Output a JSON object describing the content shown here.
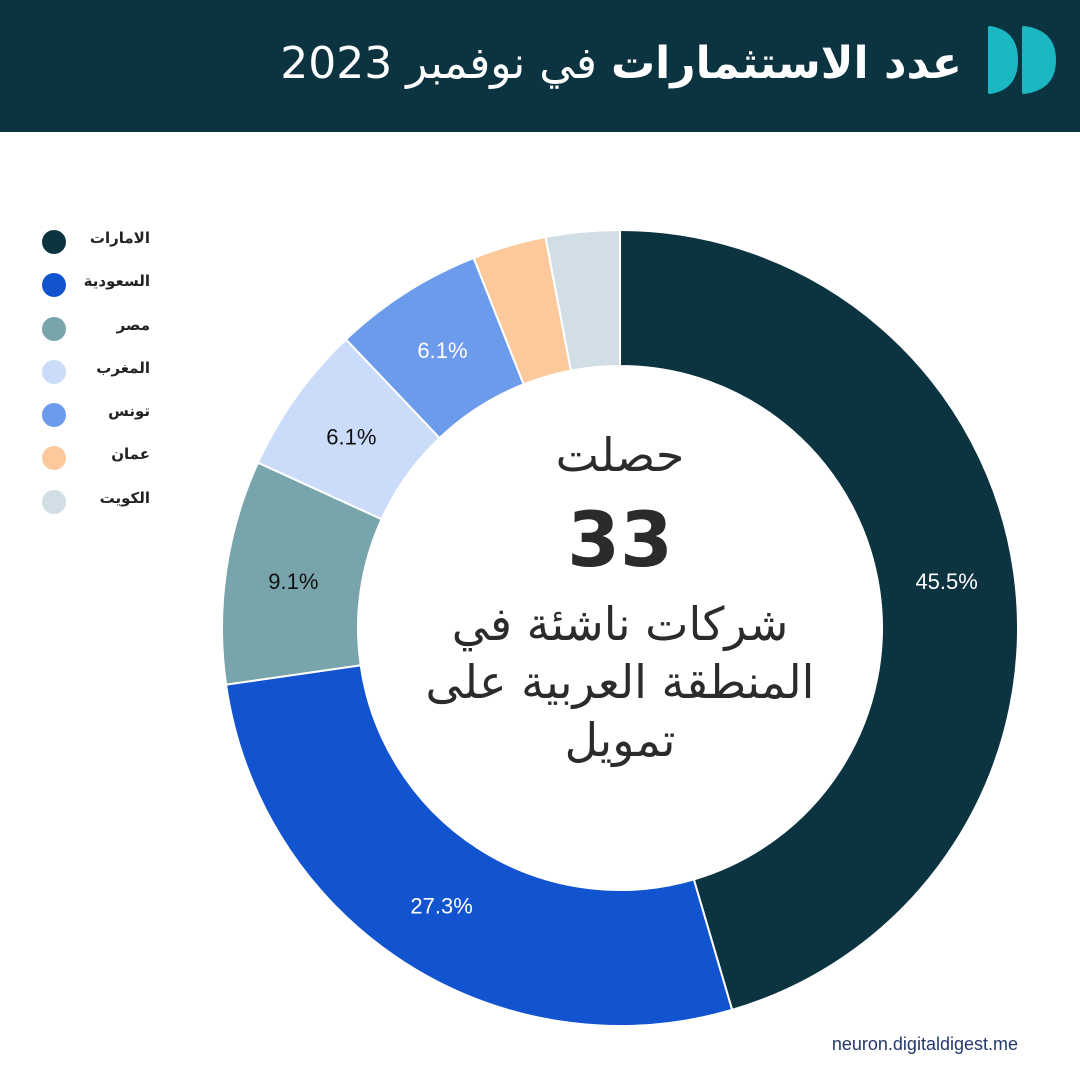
{
  "header": {
    "title_bold": "عدد الاستثمارات",
    "title_regular": "في نوفمبر 2023",
    "logo": "brand-logo-icon"
  },
  "colors": {
    "header_bg": "#0b3340",
    "logo": "#1bb8c4"
  },
  "center": {
    "top": "حصلت",
    "number": "33",
    "bottom": "شركات ناشئة في المنطقة العربية على تمويل"
  },
  "footer": {
    "source": "neuron.digitaldigest.me"
  },
  "chart_data": {
    "type": "donut",
    "categories": [
      "الامارات",
      "السعودية",
      "مصر",
      "المغرب",
      "تونس",
      "عمان",
      "الكويت"
    ],
    "values": [
      45.5,
      27.3,
      9.1,
      6.1,
      6.1,
      3.0,
      3.0
    ],
    "labels": [
      "45.5%",
      "27.3%",
      "9.1%",
      "6.1%",
      "6.1%",
      "",
      ""
    ],
    "colors": [
      "#0b3340",
      "#1254cf",
      "#78a5ab",
      "#cbdbfa",
      "#6d9bec",
      "#fbc99c",
      "#d1dee5"
    ],
    "label_colors": [
      "#ffffff",
      "#ffffff",
      "#111111",
      "#111111",
      "#ffffff",
      "#111111",
      "#111111"
    ],
    "legend_position": "top-left"
  }
}
